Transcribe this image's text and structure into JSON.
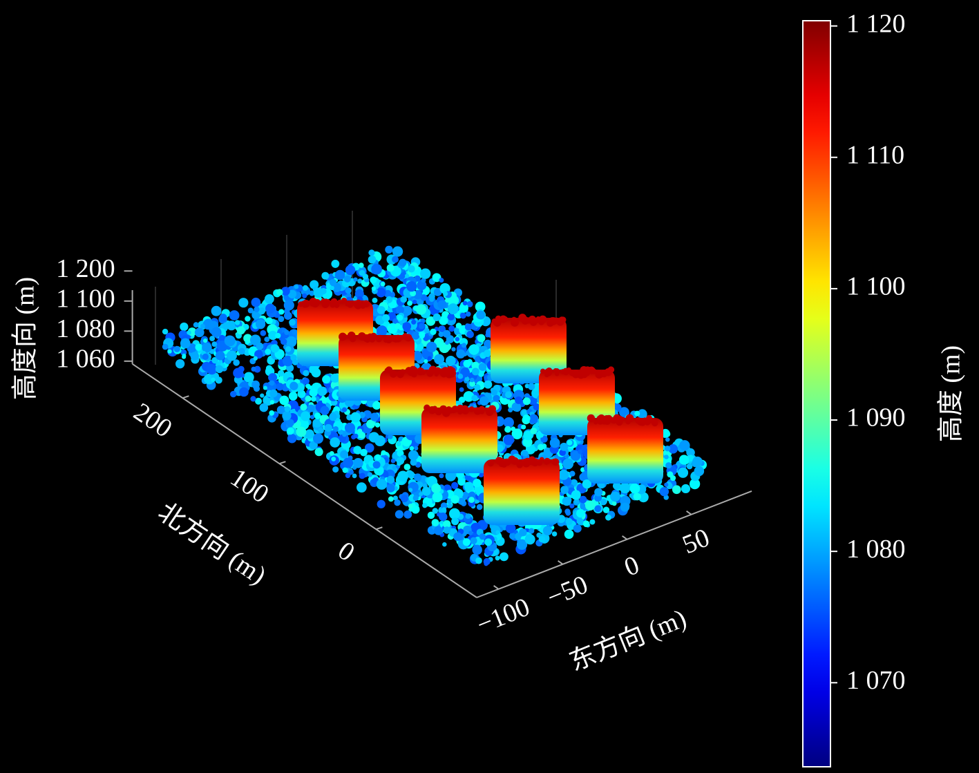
{
  "chart_data": {
    "type": "scatter3d",
    "colormap": "jet",
    "xlabel": "东方向 (m)",
    "ylabel": "北方向 (m)",
    "zlabel": "高度向 (m)",
    "xlim": [
      -117,
      97
    ],
    "ylim": [
      -104,
      252
    ],
    "xticks": [
      {
        "value": -100,
        "label": "−100"
      },
      {
        "value": -50,
        "label": "−50"
      },
      0,
      50
    ],
    "yticks": [
      0,
      100,
      200
    ],
    "zticks": [
      {
        "value": 1060,
        "label": "1 060"
      },
      {
        "value": 1080,
        "label": "1 080"
      },
      {
        "value": 1100,
        "label": "1 100"
      },
      {
        "value": 1200,
        "label": "1 200"
      }
    ],
    "colorbar": {
      "label": "高度 (m)",
      "clim": [
        1063.6,
        1120.4
      ],
      "ticks": [
        {
          "value": 1070,
          "label": "1 070"
        },
        {
          "value": 1080,
          "label": "1 080"
        },
        {
          "value": 1090,
          "label": "1 090"
        },
        {
          "value": 1100,
          "label": "1 100"
        },
        {
          "value": 1110,
          "label": "1 110"
        },
        {
          "value": 1120,
          "label": "1 120"
        }
      ]
    }
  }
}
